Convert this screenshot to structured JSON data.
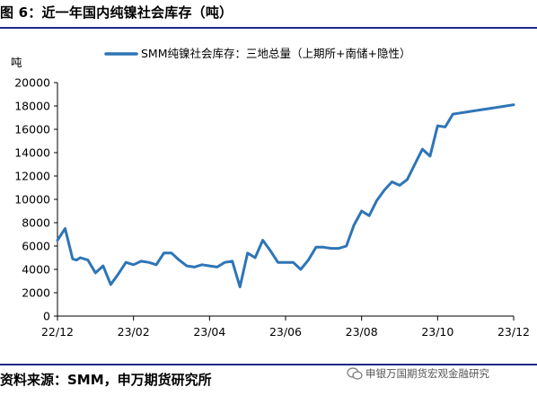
{
  "header": {
    "title": "图 6：近一年国内纯镍社会库存（吨）"
  },
  "footer": {
    "source": "资料来源：SMM，申万期货研究所",
    "watermark": "申银万国期货宏观金融研究"
  },
  "chart_data": {
    "type": "line",
    "ylabel": "吨",
    "ylim": [
      0,
      20000
    ],
    "yticks": [
      0,
      2000,
      4000,
      6000,
      8000,
      10000,
      12000,
      14000,
      16000,
      18000,
      20000
    ],
    "xlim": [
      0,
      60
    ],
    "xtick_labels": [
      "22/12",
      "23/02",
      "23/04",
      "23/06",
      "23/08",
      "23/10",
      "23/12"
    ],
    "grid": false,
    "legend_position": "top",
    "series": [
      {
        "name": "SMM纯镍社会库存：三地总量（上期所+南储+隐性）",
        "color": "#2e75b6",
        "x": [
          0,
          1,
          2,
          2.5,
          3,
          4,
          5,
          6,
          7,
          8,
          9,
          10,
          11,
          12,
          13,
          14,
          15,
          16,
          17,
          18,
          19,
          20,
          21,
          22,
          23,
          24,
          25,
          26,
          27,
          28,
          29,
          30,
          31,
          32,
          33,
          34,
          35,
          36,
          37,
          38,
          39,
          40,
          41,
          42,
          43,
          44,
          45,
          46,
          47,
          48,
          49,
          50,
          51,
          52,
          53,
          54,
          55,
          56,
          57,
          58,
          59,
          60
        ],
        "y": [
          6500,
          7500,
          4900,
          4800,
          5000,
          4800,
          3700,
          4300,
          2700,
          3600,
          4600,
          4400,
          4700,
          4600,
          4400,
          5400,
          5400,
          4800,
          4300,
          4200,
          4400,
          4300,
          4200,
          4600,
          4700,
          2500,
          5400,
          5000,
          6500,
          5600,
          4600,
          4600,
          4600,
          4000,
          4800,
          5900,
          5900,
          5800,
          5800,
          6000,
          7800,
          9000,
          8600,
          9900,
          10800,
          11500,
          11200,
          11700,
          13000,
          14300,
          13700,
          16300,
          16200,
          17300,
          17400,
          17500,
          17600,
          17700,
          17800,
          17900,
          18000,
          18100
        ]
      }
    ]
  }
}
